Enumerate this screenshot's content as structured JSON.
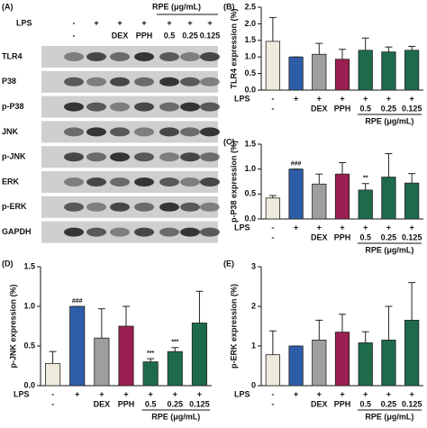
{
  "blot": {
    "panel_label": "(A)",
    "group_label": "RPE (μg/mL)",
    "condition_row": {
      "label": "LPS",
      "values": [
        "-",
        "+",
        "+",
        "+",
        "+",
        "+",
        "+"
      ]
    },
    "lanes": [
      "-",
      null,
      "DEX",
      "PPH",
      "0.5",
      "0.25",
      "0.125"
    ],
    "rows": [
      "TLR4",
      "P38",
      "p-P38",
      "JNK",
      "p-JNK",
      "ERK",
      "p-ERK",
      "GAPDH"
    ]
  },
  "chart_data": [
    {
      "type": "bar",
      "panel_label": "(B)",
      "ylabel": "TLR4 expression (%)",
      "ylim": [
        0,
        2.5
      ],
      "yticks": [
        {
          "value": 0,
          "label": "0.0"
        },
        0.5,
        {
          "value": 1,
          "label": "1.0"
        },
        1.5,
        {
          "value": 2,
          "label": "2.0"
        },
        2.5
      ],
      "condition_row": {
        "label": "LPS",
        "values": [
          "-",
          "+",
          "+",
          "+",
          "+",
          "+",
          "+"
        ]
      },
      "categories": [
        "-",
        null,
        "DEX",
        "PPH",
        "0.5",
        "0.25",
        "0.125"
      ],
      "group_label": "RPE (μg/mL)",
      "values": [
        1.47,
        1.0,
        1.08,
        0.93,
        1.2,
        1.15,
        1.2
      ],
      "errors": [
        0.72,
        0,
        0.33,
        0.3,
        0.37,
        0.15,
        0.12
      ],
      "colors": [
        "#efebdc",
        "#2d5da8",
        "#9e9e9e",
        "#9b1f50",
        "#1e6b4c",
        "#1e6b4c",
        "#1e6b4c"
      ],
      "annotations": [
        null,
        null,
        null,
        null,
        null,
        null,
        null
      ]
    },
    {
      "type": "bar",
      "panel_label": "(C)",
      "ylabel": "p-P38 expression (%)",
      "ylim": [
        0,
        1.5
      ],
      "yticks": [
        {
          "value": 0,
          "label": "0.0"
        },
        0.5,
        {
          "value": 1,
          "label": "1.0"
        },
        1.5
      ],
      "condition_row": {
        "label": "LPS",
        "values": [
          "-",
          "+",
          "+",
          "+",
          "+",
          "+",
          "+"
        ]
      },
      "categories": [
        "-",
        null,
        "DEX",
        "PPH",
        "0.5",
        "0.25",
        "0.125"
      ],
      "group_label": "RPE (μg/mL)",
      "values": [
        0.42,
        1.0,
        0.7,
        0.9,
        0.58,
        0.84,
        0.72
      ],
      "errors": [
        0.05,
        0,
        0.2,
        0.23,
        0.13,
        0.47,
        0.19
      ],
      "colors": [
        "#efebdc",
        "#2d5da8",
        "#9e9e9e",
        "#9b1f50",
        "#1e6b4c",
        "#1e6b4c",
        "#1e6b4c"
      ],
      "annotations": [
        null,
        "###",
        null,
        null,
        "**",
        null,
        null
      ]
    },
    {
      "type": "bar",
      "panel_label": "(D)",
      "ylabel": "p-JNK expression (%)",
      "ylim": [
        0,
        1.5
      ],
      "yticks": [
        {
          "value": 0,
          "label": "0.0"
        },
        0.5,
        {
          "value": 1,
          "label": "1.0"
        },
        1.5
      ],
      "condition_row": {
        "label": "LPS",
        "values": [
          "-",
          "+",
          "+",
          "+",
          "+",
          "+",
          "+"
        ]
      },
      "categories": [
        "-",
        null,
        "DEX",
        "PPH",
        "0.5",
        "0.25",
        "0.125"
      ],
      "group_label": "RPE (μg/mL)",
      "values": [
        0.28,
        1.0,
        0.6,
        0.75,
        0.3,
        0.43,
        0.79
      ],
      "errors": [
        0.15,
        0,
        0.37,
        0.25,
        0.04,
        0.05,
        0.4
      ],
      "colors": [
        "#efebdc",
        "#2d5da8",
        "#9e9e9e",
        "#9b1f50",
        "#1e6b4c",
        "#1e6b4c",
        "#1e6b4c"
      ],
      "annotations": [
        null,
        "###",
        null,
        null,
        "***",
        "***",
        null
      ]
    },
    {
      "type": "bar",
      "panel_label": "(E)",
      "ylabel": "p-ERK expression (%)",
      "ylim": [
        0,
        3
      ],
      "yticks": [
        0,
        1,
        2,
        3
      ],
      "condition_row": {
        "label": "LPS",
        "values": [
          "-",
          "+",
          "+",
          "+",
          "+",
          "+",
          "+"
        ]
      },
      "categories": [
        "-",
        null,
        "DEX",
        "PPH",
        "0.5",
        "0.25",
        "0.125"
      ],
      "group_label": "RPE (μg/mL)",
      "values": [
        0.78,
        1.0,
        1.15,
        1.35,
        1.08,
        1.15,
        1.65
      ],
      "errors": [
        0.6,
        0,
        0.5,
        0.45,
        0.28,
        0.85,
        0.95
      ],
      "colors": [
        "#efebdc",
        "#2d5da8",
        "#9e9e9e",
        "#9b1f50",
        "#1e6b4c",
        "#1e6b4c",
        "#1e6b4c"
      ],
      "annotations": [
        null,
        null,
        null,
        null,
        null,
        null,
        null
      ]
    }
  ]
}
